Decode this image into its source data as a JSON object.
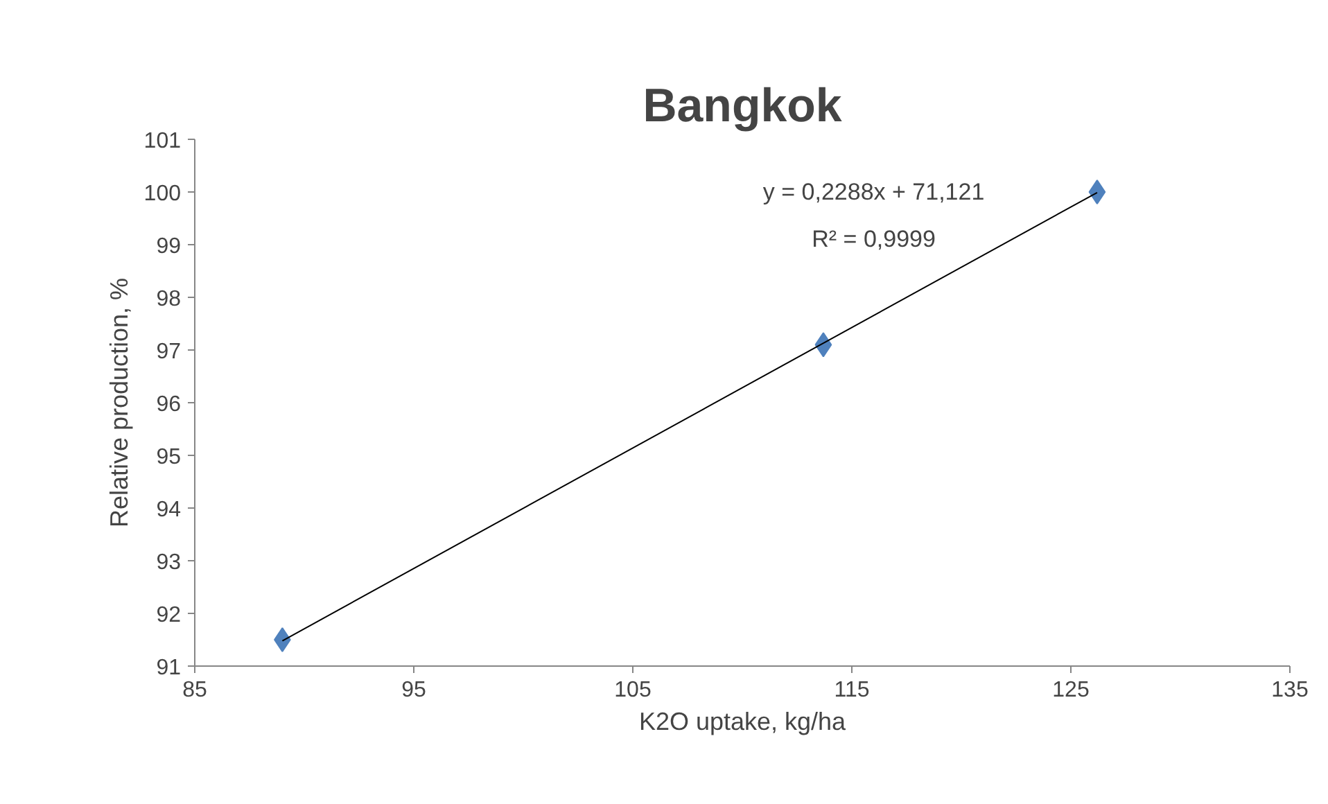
{
  "chart_data": {
    "type": "scatter",
    "title": "Bangkok",
    "xlabel": "K2O uptake, kg/ha",
    "ylabel": "Relative production, %",
    "xlim": [
      85,
      135
    ],
    "xticks": [
      85,
      95,
      105,
      115,
      125,
      135
    ],
    "ylim": [
      91,
      101
    ],
    "yticks": [
      91,
      92,
      93,
      94,
      95,
      96,
      97,
      98,
      99,
      100,
      101
    ],
    "grid": false,
    "series": [
      {
        "color": "#4f81bd",
        "marker": "diamond",
        "x": [
          89,
          113.7,
          126.2
        ],
        "values": [
          91.5,
          97.1,
          100.0
        ]
      },
      {
        "type": "line",
        "marker": "none",
        "color": "#000000",
        "x": [
          89,
          126.2
        ],
        "values": [
          91.48,
          99.99
        ]
      }
    ],
    "annotations": [
      "y = 0,2288x + 71,121",
      "R² = 0,9999"
    ]
  }
}
